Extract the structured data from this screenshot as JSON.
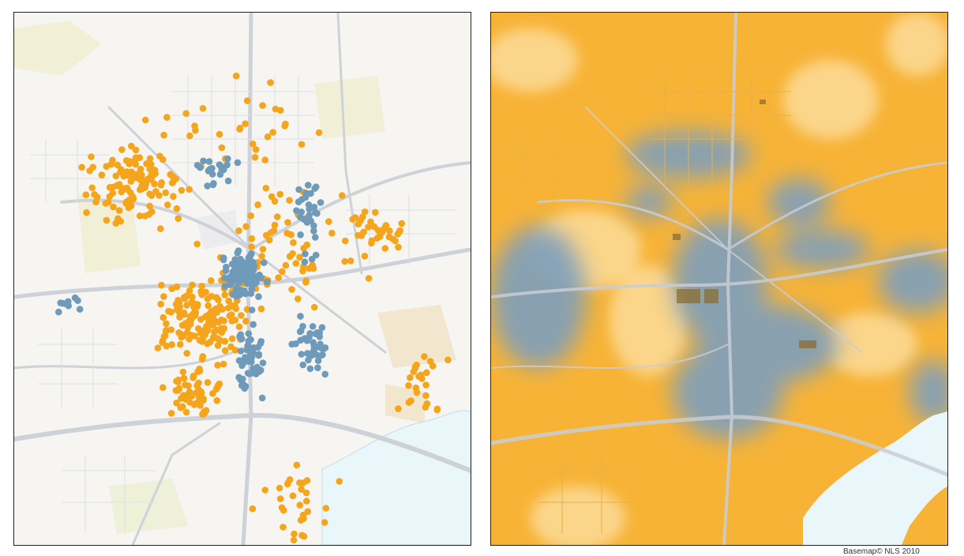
{
  "credit": "Basemap© NLS 2010",
  "legend_colors": {
    "category_orange": "#f4a51c",
    "category_blue": "#6f9ab9",
    "water": "#e9f6fa",
    "road": "#c9ced6"
  },
  "maps": [
    {
      "id": "point-map",
      "description_type": "point distribution"
    },
    {
      "id": "density-map",
      "description_type": "interpolated surface"
    }
  ]
}
